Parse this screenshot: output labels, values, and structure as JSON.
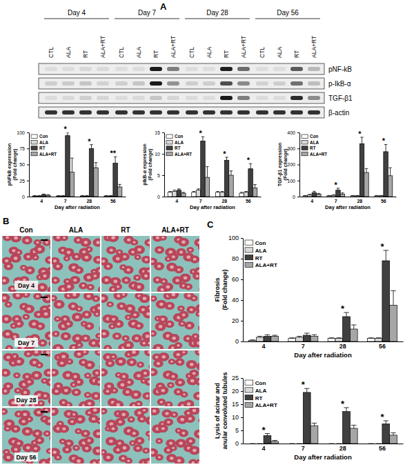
{
  "panel_labels": [
    "A",
    "B",
    "C"
  ],
  "blot": {
    "groups": [
      {
        "label": "Day 4",
        "lanes": [
          "CTL",
          "ALA",
          "RT",
          "ALA+RT"
        ]
      },
      {
        "label": "Day 7",
        "lanes": [
          "CTL",
          "ALA",
          "RT",
          "ALA+RT"
        ]
      },
      {
        "label": "Day 28",
        "lanes": [
          "CTL",
          "ALA",
          "RT",
          "ALA+RT"
        ]
      },
      {
        "label": "Day 56",
        "lanes": [
          "CTL",
          "ALA",
          "RT",
          "ALA+RT"
        ]
      }
    ],
    "rows": [
      "pNF-kB",
      "p-IkB-α",
      "TGF-β1",
      "β-actin"
    ]
  },
  "histology": {
    "columns": [
      "Con",
      "ALA",
      "RT",
      "ALA+RT"
    ],
    "rows": [
      "Day 4",
      "Day 7",
      "Day 28",
      "Day 56"
    ]
  },
  "chart_data": [
    {
      "type": "bar",
      "xlabel": "Day after radiation",
      "ylabel": [
        "pNFkB expression",
        "(Fold change)"
      ],
      "categories": [
        "4",
        "7",
        "28",
        "56"
      ],
      "ylim": [
        0,
        100
      ],
      "yticks": [
        0,
        25,
        50,
        75,
        100
      ],
      "legend": "upper left",
      "series": [
        {
          "name": "Con",
          "color": "#ffffff",
          "values": [
            1,
            1,
            1,
            1
          ],
          "errors": [
            0.5,
            0.5,
            0.5,
            0.5
          ]
        },
        {
          "name": "ALA",
          "color": "#d9d9d9",
          "values": [
            1,
            1,
            1,
            1
          ],
          "errors": [
            0.5,
            0.5,
            0.5,
            0.5
          ]
        },
        {
          "name": "RT",
          "color": "#404040",
          "values": [
            3,
            95,
            75,
            52
          ],
          "errors": [
            1,
            5,
            6,
            10
          ]
        },
        {
          "name": "ALA+RT",
          "color": "#a6a6a6",
          "values": [
            2,
            38,
            45,
            15
          ],
          "errors": [
            1,
            22,
            8,
            4
          ]
        }
      ],
      "annotations": [
        {
          "text": "*",
          "category": "7"
        },
        {
          "text": "*",
          "category": "28"
        },
        {
          "text": "**",
          "category": "56"
        }
      ]
    },
    {
      "type": "bar",
      "xlabel": "Day after radiation",
      "ylabel": [
        "pIkB-α expression",
        "(Fold change)"
      ],
      "categories": [
        "4",
        "7",
        "28",
        "56"
      ],
      "ylim": [
        0,
        15
      ],
      "yticks": [
        0,
        5,
        10,
        15
      ],
      "legend": "upper left",
      "series": [
        {
          "name": "Con",
          "color": "#ffffff",
          "values": [
            1,
            1,
            1,
            0.8
          ],
          "errors": [
            0.2,
            0.2,
            0.2,
            0.2
          ]
        },
        {
          "name": "ALA",
          "color": "#d9d9d9",
          "values": [
            1.2,
            1.5,
            1,
            1
          ],
          "errors": [
            0.3,
            0.3,
            0.2,
            0.2
          ]
        },
        {
          "name": "RT",
          "color": "#404040",
          "values": [
            1.5,
            13,
            8.5,
            6.5
          ],
          "errors": [
            0.3,
            1,
            0.7,
            1.2
          ]
        },
        {
          "name": "ALA+RT",
          "color": "#a6a6a6",
          "values": [
            0.8,
            4.5,
            5,
            2
          ],
          "errors": [
            0.2,
            2.5,
            1,
            0.8
          ]
        }
      ],
      "annotations": [
        {
          "text": "*",
          "category": "7"
        },
        {
          "text": "*",
          "category": "28"
        },
        {
          "text": "*",
          "category": "56"
        }
      ]
    },
    {
      "type": "bar",
      "xlabel": "Day after radiation",
      "ylabel": [
        "TGF-β1 expression",
        "(Fold change)"
      ],
      "categories": [
        "4",
        "7",
        "28",
        "56"
      ],
      "ylim": [
        0,
        400
      ],
      "yticks": [
        0,
        100,
        200,
        300,
        400
      ],
      "legend": "upper left",
      "series": [
        {
          "name": "Con",
          "color": "#ffffff",
          "values": [
            5,
            5,
            5,
            5
          ],
          "errors": [
            2,
            2,
            2,
            2
          ]
        },
        {
          "name": "ALA",
          "color": "#d9d9d9",
          "values": [
            10,
            8,
            5,
            5
          ],
          "errors": [
            4,
            3,
            2,
            2
          ]
        },
        {
          "name": "RT",
          "color": "#404040",
          "values": [
            25,
            40,
            330,
            280
          ],
          "errors": [
            8,
            12,
            40,
            45
          ]
        },
        {
          "name": "ALA+RT",
          "color": "#a6a6a6",
          "values": [
            15,
            15,
            150,
            130
          ],
          "errors": [
            5,
            8,
            25,
            50
          ]
        }
      ],
      "annotations": [
        {
          "text": "*",
          "category": "7"
        },
        {
          "text": "*",
          "category": "28"
        },
        {
          "text": "*",
          "category": "56"
        }
      ]
    },
    {
      "type": "bar",
      "xlabel": "Day after radiation",
      "ylabel": [
        "Fibrosis",
        "(Fold change)"
      ],
      "categories": [
        "4",
        "7",
        "28",
        "56"
      ],
      "ylim": [
        0,
        100
      ],
      "yticks": [
        0,
        20,
        40,
        60,
        80,
        100
      ],
      "legend": "upper left",
      "series": [
        {
          "name": "Con",
          "color": "#ffffff",
          "values": [
            1,
            3,
            3,
            3
          ],
          "errors": [
            0.5,
            0.5,
            0.5,
            0.5
          ]
        },
        {
          "name": "ALA",
          "color": "#d9d9d9",
          "values": [
            4,
            4,
            3,
            3
          ],
          "errors": [
            1,
            1,
            0.5,
            0.5
          ]
        },
        {
          "name": "RT",
          "color": "#404040",
          "values": [
            5,
            6,
            24,
            78
          ],
          "errors": [
            1.5,
            2,
            4,
            10
          ]
        },
        {
          "name": "ALA+RT",
          "color": "#a6a6a6",
          "values": [
            5,
            5,
            12,
            35
          ],
          "errors": [
            1,
            1.5,
            4,
            14
          ]
        }
      ],
      "annotations": [
        {
          "text": "*",
          "category": "28"
        },
        {
          "text": "*",
          "category": "56"
        }
      ]
    },
    {
      "type": "bar",
      "xlabel": "Day after radiation",
      "ylabel": [
        "Lysis of acinar and",
        "anular convoluted tubules"
      ],
      "categories": [
        "4",
        "7",
        "28",
        "56"
      ],
      "ylim": [
        0,
        25
      ],
      "yticks": [
        0,
        5,
        10,
        15,
        20,
        25
      ],
      "legend": "upper left",
      "series": [
        {
          "name": "Con",
          "color": "#ffffff",
          "values": [
            0,
            0,
            0,
            0
          ],
          "errors": [
            0,
            0,
            0,
            0
          ]
        },
        {
          "name": "ALA",
          "color": "#d9d9d9",
          "values": [
            0,
            0,
            0,
            0
          ],
          "errors": [
            0,
            0,
            0,
            0
          ]
        },
        {
          "name": "RT",
          "color": "#404040",
          "values": [
            3,
            19.5,
            12.2,
            7.5
          ],
          "errors": [
            0.8,
            1.5,
            1.5,
            1.2
          ]
        },
        {
          "name": "ALA+RT",
          "color": "#a6a6a6",
          "values": [
            0.8,
            6.8,
            5.8,
            3.2
          ],
          "errors": [
            0.4,
            1,
            1.2,
            0.9
          ]
        }
      ],
      "annotations": [
        {
          "text": "*",
          "category": "4"
        },
        {
          "text": "*",
          "category": "7"
        },
        {
          "text": "*",
          "category": "28"
        },
        {
          "text": "*",
          "category": "56"
        }
      ]
    }
  ]
}
